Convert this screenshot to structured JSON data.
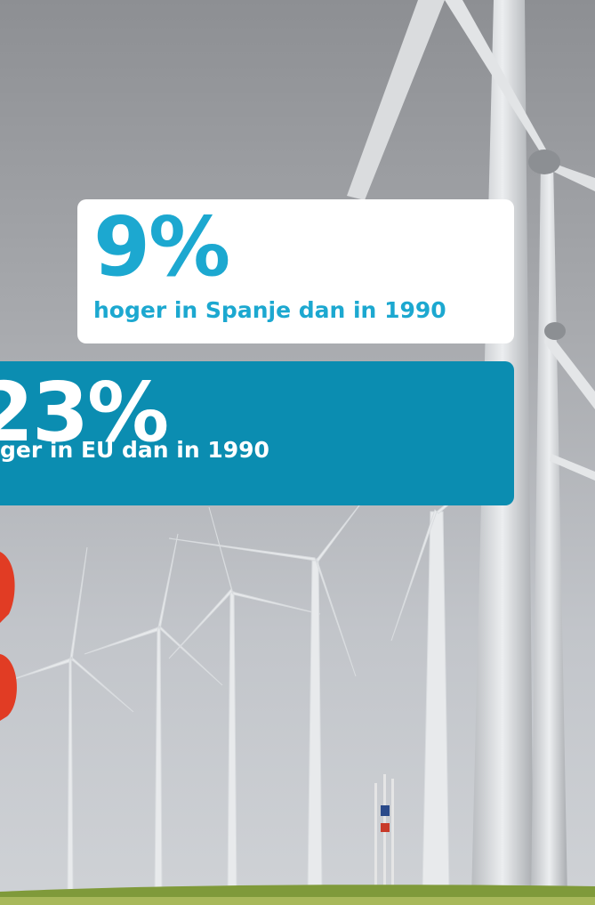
{
  "callouts": [
    {
      "figure": "9%",
      "caption": "hoger in Spanje dan in 1990"
    },
    {
      "figure": "23%",
      "caption": "ger in EU dan in 1990"
    }
  ]
}
